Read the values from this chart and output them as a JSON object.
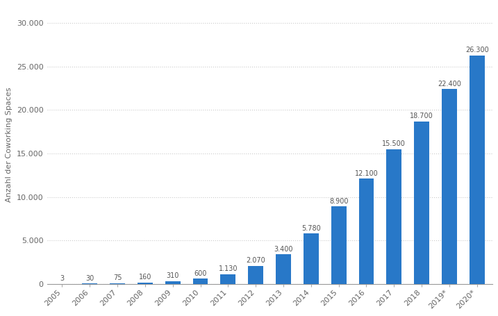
{
  "years": [
    "2005",
    "2006",
    "2007",
    "2008",
    "2009",
    "2010",
    "2011",
    "2012",
    "2013",
    "2014",
    "2015",
    "2016",
    "2017",
    "2018",
    "2019*",
    "2020*"
  ],
  "values": [
    3,
    30,
    75,
    160,
    310,
    600,
    1130,
    2070,
    3400,
    5780,
    8900,
    12100,
    15500,
    18700,
    22400,
    26300
  ],
  "bar_color": "#2878c8",
  "ylabel": "Anzahl der Coworking Spaces",
  "ylim": [
    0,
    32000
  ],
  "yticks": [
    0,
    5000,
    10000,
    15000,
    20000,
    25000,
    30000
  ],
  "ytick_labels": [
    "0",
    "5.000",
    "10.000",
    "15.000",
    "20.000",
    "25.000",
    "30.000"
  ],
  "background_color": "#ffffff",
  "plot_bg_color": "#ffffff",
  "grid_color": "#cccccc",
  "bar_width": 0.55,
  "value_labels": [
    "3",
    "30",
    "75",
    "160",
    "310",
    "600",
    "1.130",
    "2.070",
    "3.400",
    "5.780",
    "8.900",
    "12.100",
    "15.500",
    "18.700",
    "22.400",
    "26.300"
  ],
  "label_fontsize": 7.0,
  "ylabel_fontsize": 8.0,
  "tick_fontsize": 8.0,
  "value_label_color": "#555555",
  "figsize": [
    7.17,
    4.55
  ],
  "dpi": 100
}
